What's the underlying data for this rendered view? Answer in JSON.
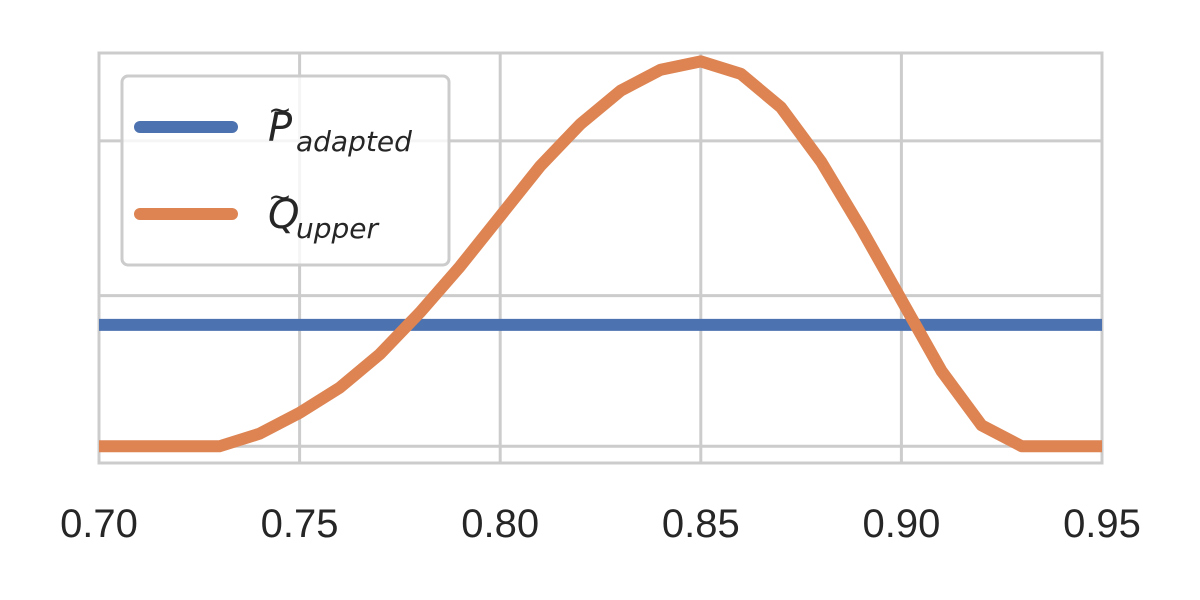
{
  "chart_data": {
    "type": "line",
    "xlim": [
      0.7,
      0.95
    ],
    "ylim": [
      -0.04,
      0.94
    ],
    "x_ticks": [
      "0.70",
      "0.75",
      "0.80",
      "0.85",
      "0.90",
      "0.95"
    ],
    "x_tick_values": [
      0.7,
      0.75,
      0.8,
      0.85,
      0.9,
      0.95
    ],
    "y_gridlines": [
      0,
      0.36,
      0.73
    ],
    "y_ticks_labeled": false,
    "grid": true,
    "legend_placement": "top-left",
    "series": [
      {
        "name_base": "P",
        "name_accent": "~",
        "name_sub": "adapted",
        "color": "#4c72b0",
        "x": [
          0.7,
          0.95
        ],
        "y": [
          0.29,
          0.29
        ]
      },
      {
        "name_base": "Q",
        "name_accent": "~",
        "name_sub": "upper",
        "color": "#dd8452",
        "x": [
          0.7,
          0.71,
          0.72,
          0.73,
          0.74,
          0.75,
          0.76,
          0.77,
          0.78,
          0.79,
          0.8,
          0.81,
          0.82,
          0.83,
          0.84,
          0.85,
          0.86,
          0.87,
          0.88,
          0.89,
          0.9,
          0.91,
          0.92,
          0.93,
          0.94,
          0.95
        ],
        "y": [
          0.0,
          0.0,
          0.0,
          0.0,
          0.03,
          0.08,
          0.14,
          0.22,
          0.32,
          0.43,
          0.55,
          0.67,
          0.77,
          0.85,
          0.9,
          0.92,
          0.89,
          0.81,
          0.68,
          0.52,
          0.35,
          0.18,
          0.05,
          0.0,
          0.0,
          0.0
        ]
      }
    ]
  }
}
